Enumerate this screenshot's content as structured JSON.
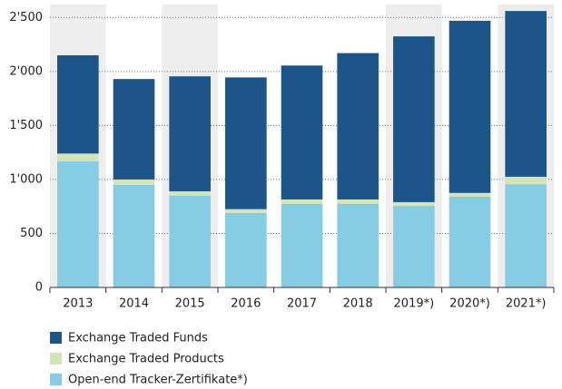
{
  "chart_data": {
    "type": "stacked_bar",
    "categories": [
      "2013",
      "2014",
      "2015",
      "2016",
      "2017",
      "2018",
      "2019*)",
      "2020*)",
      "2021*)"
    ],
    "series": [
      {
        "name": "Open-end Tracker-Zertifikate*)",
        "color": "#84cde4",
        "values": [
          1170,
          950,
          850,
          690,
          775,
          775,
          755,
          840,
          955
        ]
      },
      {
        "name": "Exchange Traded Products",
        "color": "#d4e4b4",
        "values": [
          70,
          50,
          40,
          35,
          40,
          40,
          35,
          35,
          70
        ]
      },
      {
        "name": "Exchange Traded Funds",
        "color": "#1b5589",
        "values": [
          910,
          930,
          1065,
          1220,
          1240,
          1355,
          1535,
          1595,
          1535
        ]
      }
    ],
    "ylim": [
      0,
      2620
    ],
    "yticks": [
      0,
      500,
      {
        "value": 1000,
        "label": "1'000"
      },
      {
        "value": 1500,
        "label": "1'500"
      },
      {
        "value": 2000,
        "label": "2'000"
      },
      {
        "value": 2500,
        "label": "2'500"
      }
    ],
    "grid": true,
    "legend": "bottom"
  }
}
